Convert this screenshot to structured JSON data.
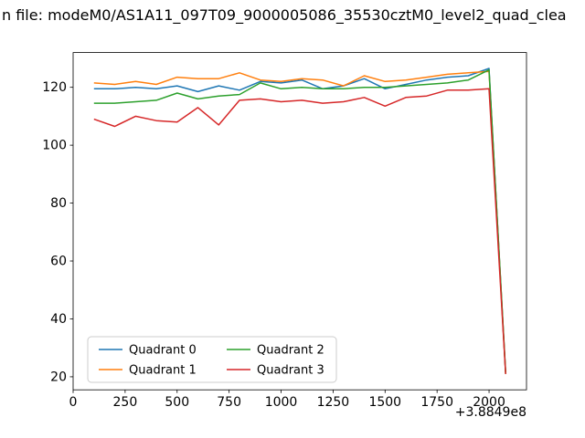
{
  "title": "n file: modeM0/AS1A11_097T09_9000005086_35530cztM0_level2_quad_clea",
  "chart_data": {
    "type": "line",
    "title": "n file: modeM0/AS1A11_097T09_9000005086_35530cztM0_level2_quad_clea",
    "xlabel": "",
    "ylabel": "",
    "x_offset_label": "+3.8849e8",
    "xlim": [
      0,
      2180
    ],
    "ylim": [
      15.5,
      132
    ],
    "x_ticks": [
      0,
      250,
      500,
      750,
      1000,
      1250,
      1500,
      1750,
      2000
    ],
    "y_ticks": [
      20,
      40,
      60,
      80,
      100,
      120
    ],
    "grid": false,
    "legend_position": "lower left",
    "x": [
      100,
      200,
      300,
      400,
      500,
      600,
      700,
      800,
      900,
      1000,
      1100,
      1200,
      1300,
      1400,
      1500,
      1600,
      1700,
      1800,
      1900,
      2000,
      2080
    ],
    "series": [
      {
        "name": "Quadrant 0",
        "color": "#1f77b4",
        "values": [
          119.5,
          119.5,
          120.0,
          119.5,
          120.5,
          118.5,
          120.5,
          119.0,
          122.0,
          121.5,
          122.5,
          119.5,
          120.5,
          123.0,
          119.5,
          121.0,
          122.5,
          123.5,
          124.0,
          126.5,
          21.0
        ]
      },
      {
        "name": "Quadrant 1",
        "color": "#ff7f0e",
        "values": [
          121.5,
          121.0,
          122.0,
          121.0,
          123.5,
          123.0,
          123.0,
          125.0,
          122.5,
          122.0,
          123.0,
          122.5,
          120.5,
          124.0,
          122.0,
          122.5,
          123.5,
          124.5,
          125.0,
          125.5,
          21.0
        ]
      },
      {
        "name": "Quadrant 2",
        "color": "#2ca02c",
        "values": [
          114.5,
          114.5,
          115.0,
          115.5,
          118.0,
          116.0,
          117.0,
          117.5,
          121.5,
          119.5,
          120.0,
          119.5,
          119.5,
          120.0,
          120.0,
          120.5,
          121.0,
          121.5,
          122.5,
          126.0,
          21.5
        ]
      },
      {
        "name": "Quadrant 3",
        "color": "#d62728",
        "values": [
          109.0,
          106.5,
          110.0,
          108.5,
          108.0,
          113.0,
          107.0,
          115.5,
          116.0,
          115.0,
          115.5,
          114.5,
          115.0,
          116.5,
          113.5,
          116.5,
          117.0,
          119.0,
          119.0,
          119.5,
          21.0
        ]
      }
    ]
  }
}
